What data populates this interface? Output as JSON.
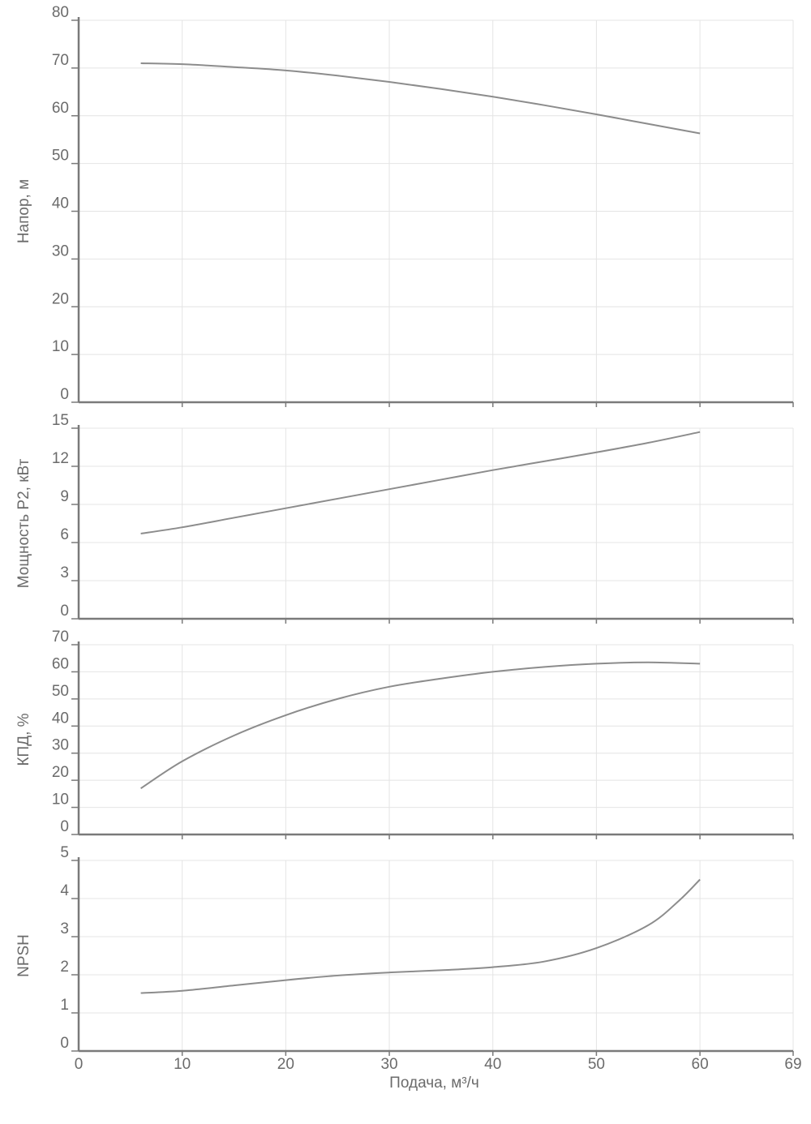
{
  "chart_data": [
    {
      "type": "line",
      "title": "",
      "xlabel": "",
      "ylabel": "Напор, м",
      "xlim": [
        0,
        69
      ],
      "ylim": [
        0,
        80
      ],
      "yticks": [
        0,
        10,
        20,
        30,
        40,
        50,
        60,
        70,
        80
      ],
      "grid": true,
      "series": [
        {
          "x": [
            6,
            10,
            15,
            20,
            25,
            30,
            35,
            40,
            45,
            50,
            55,
            60
          ],
          "y": [
            71,
            70.8,
            70.2,
            69.5,
            68.4,
            67.1,
            65.6,
            64,
            62.2,
            60.3,
            58.3,
            56.3
          ]
        }
      ]
    },
    {
      "type": "line",
      "title": "",
      "xlabel": "",
      "ylabel": "Мощность P2, кВт",
      "xlim": [
        0,
        69
      ],
      "ylim": [
        0,
        15
      ],
      "yticks": [
        0,
        3,
        6,
        9,
        12,
        15
      ],
      "grid": true,
      "series": [
        {
          "x": [
            6,
            10,
            15,
            20,
            25,
            30,
            35,
            40,
            45,
            50,
            55,
            60
          ],
          "y": [
            6.7,
            7.2,
            7.95,
            8.7,
            9.45,
            10.2,
            10.95,
            11.7,
            12.4,
            13.1,
            13.85,
            14.7
          ]
        }
      ]
    },
    {
      "type": "line",
      "title": "",
      "xlabel": "",
      "ylabel": "КПД, %",
      "xlim": [
        0,
        69
      ],
      "ylim": [
        0,
        70
      ],
      "yticks": [
        0,
        10,
        20,
        30,
        40,
        50,
        60,
        70
      ],
      "grid": true,
      "series": [
        {
          "x": [
            6,
            10,
            15,
            20,
            25,
            30,
            35,
            40,
            45,
            50,
            55,
            60
          ],
          "y": [
            17,
            27,
            36.5,
            44,
            50,
            54.5,
            57.5,
            60,
            61.8,
            63,
            63.5,
            63
          ]
        }
      ]
    },
    {
      "type": "line",
      "title": "",
      "xlabel": "Подача, м³/ч",
      "ylabel": "NPSH",
      "xlim": [
        0,
        69
      ],
      "ylim": [
        0,
        5
      ],
      "yticks": [
        0,
        1,
        2,
        3,
        4,
        5
      ],
      "xticks": [
        0,
        10,
        20,
        30,
        40,
        50,
        60,
        69
      ],
      "grid": true,
      "series": [
        {
          "x": [
            6,
            10,
            15,
            20,
            25,
            30,
            35,
            40,
            45,
            50,
            55,
            58,
            60
          ],
          "y": [
            1.52,
            1.58,
            1.72,
            1.86,
            1.98,
            2.06,
            2.12,
            2.2,
            2.35,
            2.7,
            3.3,
            3.95,
            4.5
          ]
        }
      ]
    }
  ]
}
